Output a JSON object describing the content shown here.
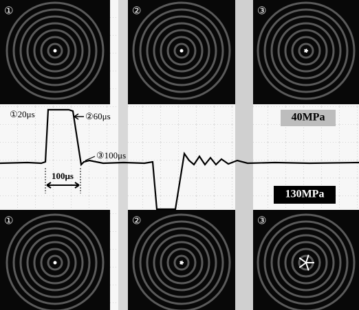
{
  "top_panels": [
    {
      "label": "①"
    },
    {
      "label": "②"
    },
    {
      "label": "③"
    }
  ],
  "bottom_panels": [
    {
      "label": "①"
    },
    {
      "label": "②"
    },
    {
      "label": "③"
    }
  ],
  "annotations": {
    "point_1": "①20μs",
    "point_2": "②60μs",
    "point_3": "③100μs",
    "duration": "100μs"
  },
  "pressure_labels": {
    "top": "40MPa",
    "bottom": "130MPa"
  }
}
